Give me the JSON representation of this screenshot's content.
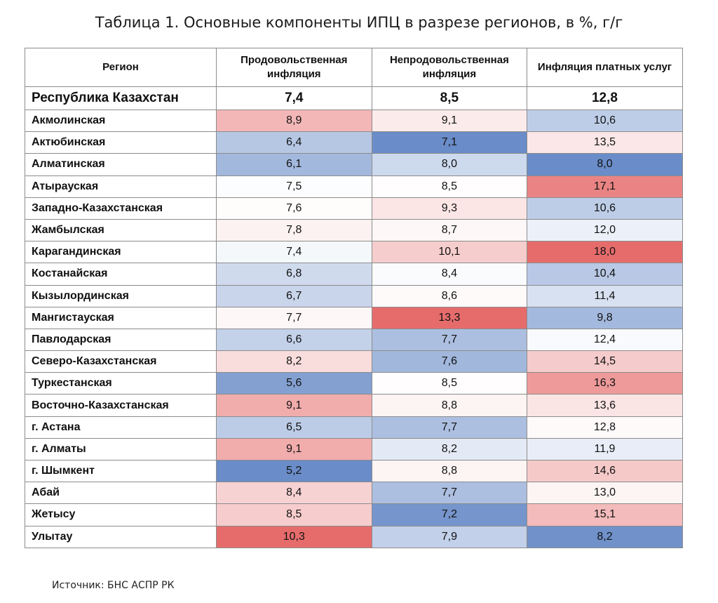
{
  "title": "Таблица 1. Основные компоненты ИПЦ в разрезе регионов, в %, г/г",
  "source": "Источник: БНС АСПР РК",
  "colors": {
    "high": "#e66c6c",
    "mid": "#ffffff",
    "low": "#6a8cc8"
  },
  "chart_data": {
    "type": "table",
    "columns": [
      "Регион",
      "Продовольственная инфляция",
      "Непродовольственная инфляция",
      "Инфляция платных услуг"
    ],
    "total": {
      "region": "Республика Казахстан",
      "values": [
        "7,4",
        "8,5",
        "12,8"
      ]
    },
    "rows": [
      {
        "region": "Акмолинская",
        "values": [
          "8,9",
          "9,1",
          "10,6"
        ]
      },
      {
        "region": "Актюбинская",
        "values": [
          "6,4",
          "7,1",
          "13,5"
        ]
      },
      {
        "region": "Алматинская",
        "values": [
          "6,1",
          "8,0",
          "8,0"
        ]
      },
      {
        "region": "Атырауская",
        "values": [
          "7,5",
          "8,5",
          "17,1"
        ]
      },
      {
        "region": "Западно-Казахстанская",
        "values": [
          "7,6",
          "9,3",
          "10,6"
        ]
      },
      {
        "region": "Жамбылская",
        "values": [
          "7,8",
          "8,7",
          "12,0"
        ]
      },
      {
        "region": "Карагандинская",
        "values": [
          "7,4",
          "10,1",
          "18,0"
        ]
      },
      {
        "region": "Костанайская",
        "values": [
          "6,8",
          "8,4",
          "10,4"
        ]
      },
      {
        "region": "Кызылординская",
        "values": [
          "6,7",
          "8,6",
          "11,4"
        ]
      },
      {
        "region": "Мангистауская",
        "values": [
          "7,7",
          "13,3",
          "9,8"
        ]
      },
      {
        "region": "Павлодарская",
        "values": [
          "6,6",
          "7,7",
          "12,4"
        ]
      },
      {
        "region": "Северо-Казахстанская",
        "values": [
          "8,2",
          "7,6",
          "14,5"
        ]
      },
      {
        "region": "Туркестанская",
        "values": [
          "5,6",
          "8,5",
          "16,3"
        ]
      },
      {
        "region": "Восточно-Казахстанская",
        "values": [
          "9,1",
          "8,8",
          "13,6"
        ]
      },
      {
        "region": "г. Астана",
        "values": [
          "6,5",
          "7,7",
          "12,8"
        ]
      },
      {
        "region": "г. Алматы",
        "values": [
          "9,1",
          "8,2",
          "11,9"
        ]
      },
      {
        "region": "г. Шымкент",
        "values": [
          "5,2",
          "8,8",
          "14,6"
        ]
      },
      {
        "region": "Абай",
        "values": [
          "8,4",
          "7,7",
          "13,0"
        ]
      },
      {
        "region": "Жетысу",
        "values": [
          "8,5",
          "7,2",
          "15,1"
        ]
      },
      {
        "region": "Улытау",
        "values": [
          "10,3",
          "7,9",
          "8,2"
        ]
      }
    ]
  }
}
